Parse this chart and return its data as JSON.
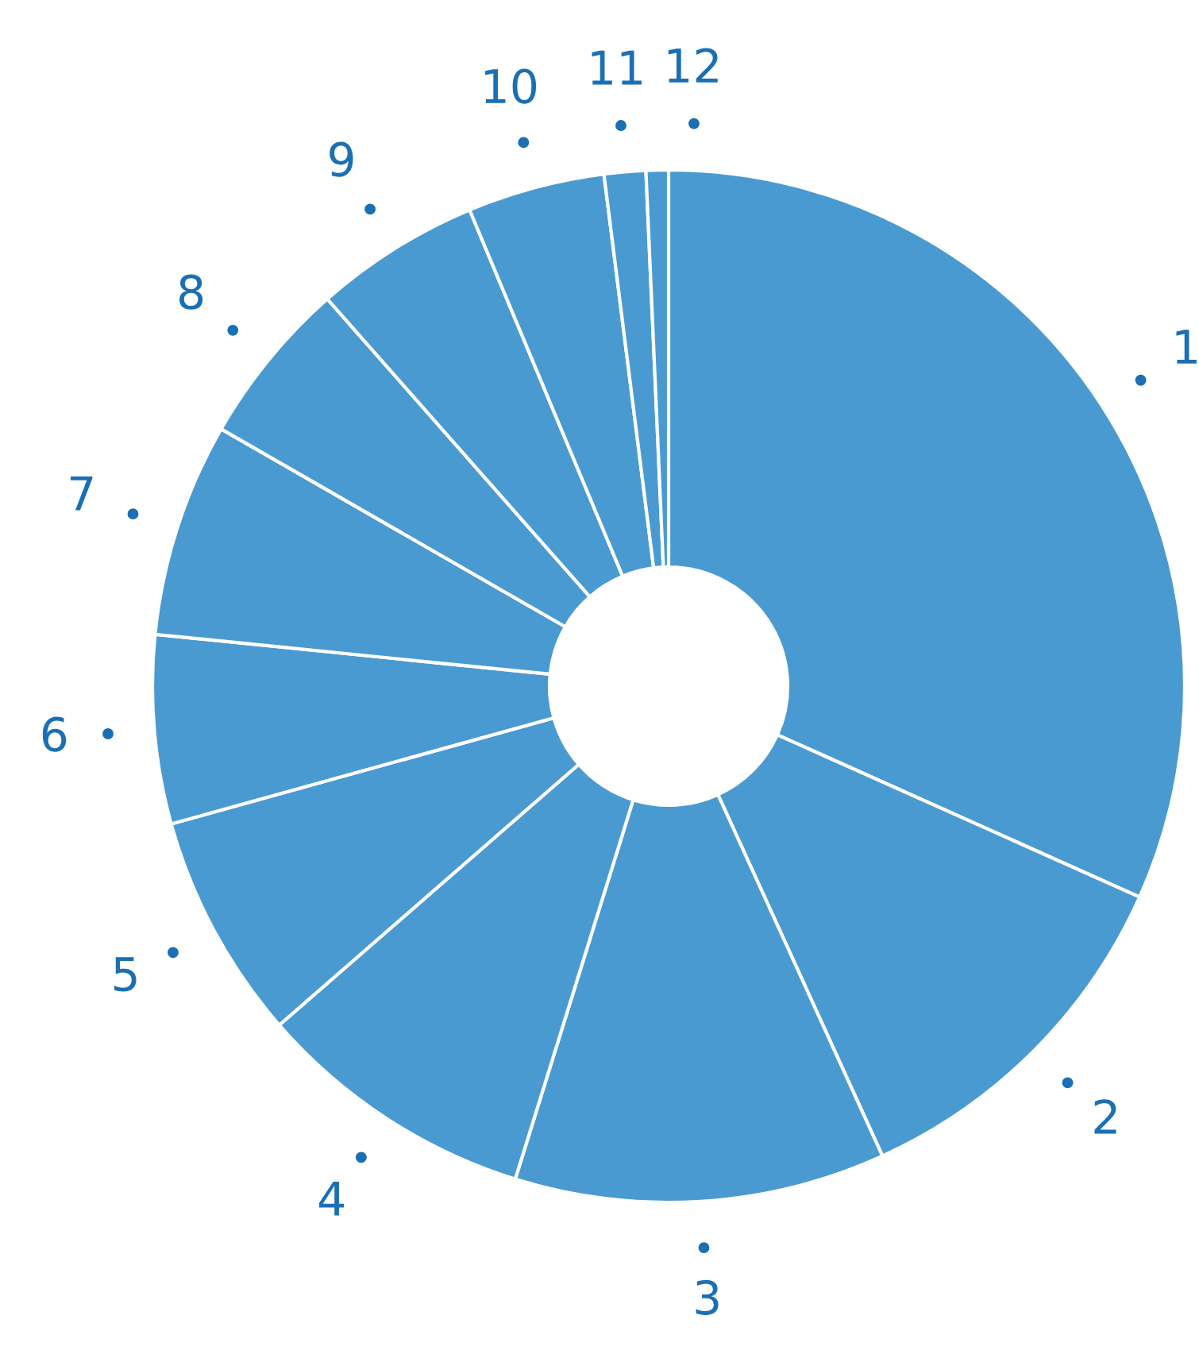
{
  "chart_data": {
    "type": "donut",
    "categories": [
      "1",
      "2",
      "3",
      "4",
      "5",
      "6",
      "7",
      "8",
      "9",
      "10",
      "11",
      "12"
    ],
    "values": [
      31.7,
      11.5,
      11.6,
      8.8,
      7.1,
      5.9,
      6.7,
      5.2,
      5.2,
      4.3,
      1.3,
      0.7
    ],
    "colors": [
      "#4a9ad2",
      "#4a9ad2",
      "#4a9ad2",
      "#4a9ad2",
      "#4a9ad2",
      "#4a9ad2",
      "#4a9ad2",
      "#4a9ad2",
      "#4a9ad2",
      "#4a9ad2",
      "#4a9ad2",
      "#4a9ad2"
    ],
    "legend": false
  }
}
